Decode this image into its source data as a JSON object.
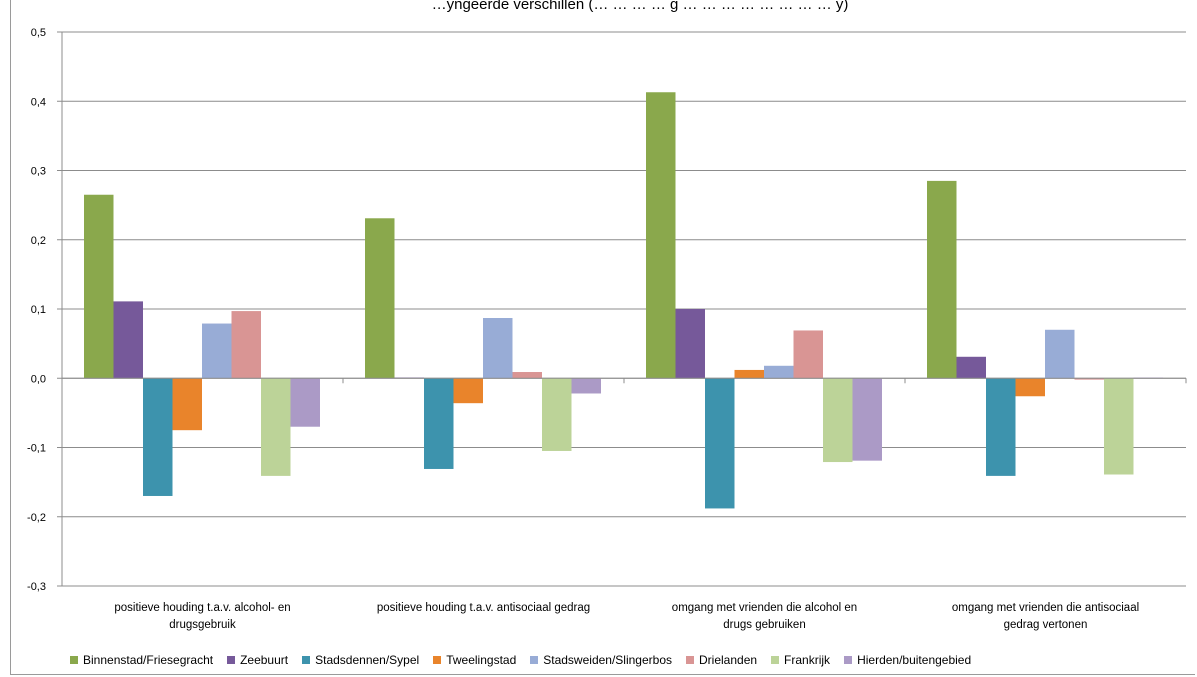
{
  "chart_data": {
    "type": "bar",
    "title": "…yngeerde verschillen (… … … … g … … … … … … … … y)",
    "categories": [
      [
        "positieve houding t.a.v. alcohol- en",
        "drugsgebruik"
      ],
      [
        "positieve houding t.a.v. antisociaal gedrag"
      ],
      [
        "omgang met vrienden die alcohol en",
        "drugs gebruiken"
      ],
      [
        "omgang met vrienden die antisociaal",
        "gedrag vertonen"
      ]
    ],
    "ylim": [
      -0.3,
      0.5
    ],
    "yticks": [
      "-0,3",
      "-0,2",
      "-0,1",
      "0,0",
      "0,1",
      "0,2",
      "0,3",
      "0,4",
      "0,5"
    ],
    "grid": true,
    "legend_position": "bottom",
    "series": [
      {
        "name": "Binnenstad/Friesegracht",
        "color": "#8aa84c",
        "values": [
          0.265,
          0.231,
          0.413,
          0.285
        ]
      },
      {
        "name": "Zeebuurt",
        "color": "#76599a",
        "values": [
          0.111,
          0.001,
          0.1,
          0.031
        ]
      },
      {
        "name": "Stadsdennen/Sypel",
        "color": "#3d93ad",
        "values": [
          -0.17,
          -0.131,
          -0.188,
          -0.141
        ]
      },
      {
        "name": "Tweelingstad",
        "color": "#e9842b",
        "values": [
          -0.075,
          -0.036,
          0.012,
          -0.026
        ]
      },
      {
        "name": "Stadsweiden/Slingerbos",
        "color": "#98acd6",
        "values": [
          0.079,
          0.087,
          0.018,
          0.07
        ]
      },
      {
        "name": "Drielanden",
        "color": "#d99594",
        "values": [
          0.097,
          0.009,
          0.069,
          -0.002
        ]
      },
      {
        "name": "Frankrijk",
        "color": "#bcd398",
        "values": [
          -0.141,
          -0.105,
          -0.121,
          -0.139
        ]
      },
      {
        "name": "Hierden/buitengebied",
        "color": "#ab9ac6",
        "values": [
          -0.07,
          -0.022,
          -0.119,
          0.001
        ]
      }
    ]
  }
}
